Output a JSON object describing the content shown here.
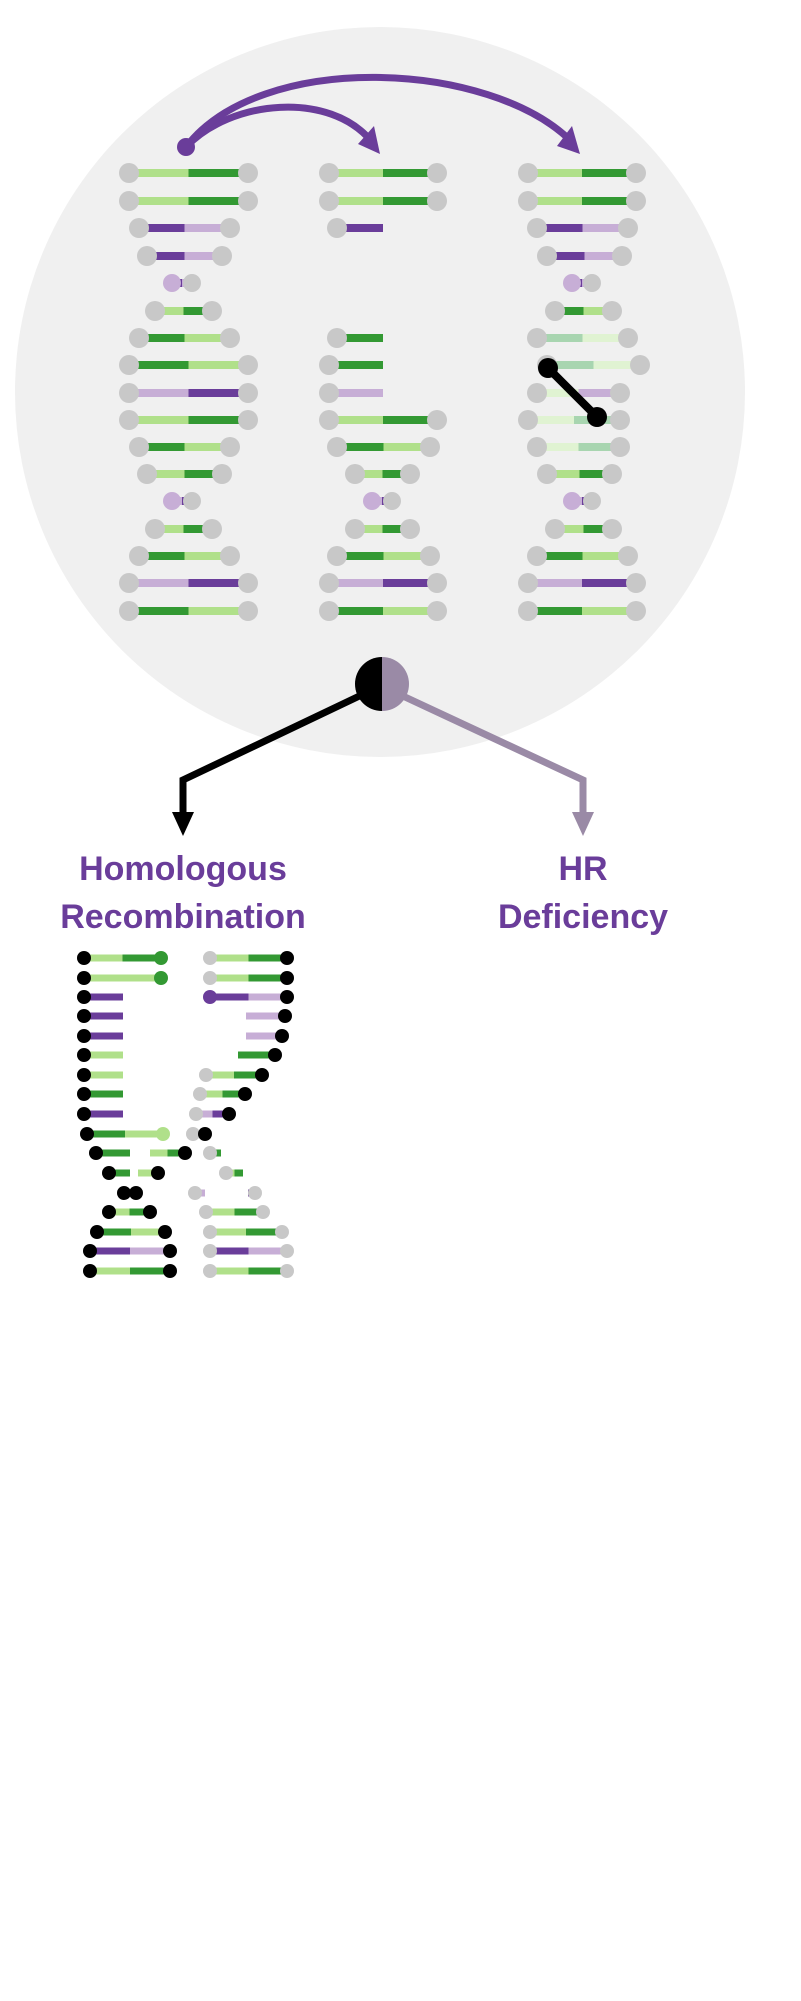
{
  "labels": {
    "hr_line1": "Homologous",
    "hr_line2": "Recombination",
    "hrd_line1": "HR",
    "hrd_line2": "Deficiency"
  },
  "colors": {
    "purple": "#6a3d9a",
    "green_dark": "#339933",
    "green_light": "#b0e08a",
    "lavender": "#c7aed6",
    "grey_node": "#c8c8c8",
    "circle_bg": "#f0f0f0",
    "black": "#000000",
    "hrd_grey": "#9a8aa6"
  },
  "icons": {
    "hr_arrow": "arrow-down-black",
    "hrd_arrow": "arrow-down-grey",
    "junction": "half-black-half-mauve-circle"
  }
}
